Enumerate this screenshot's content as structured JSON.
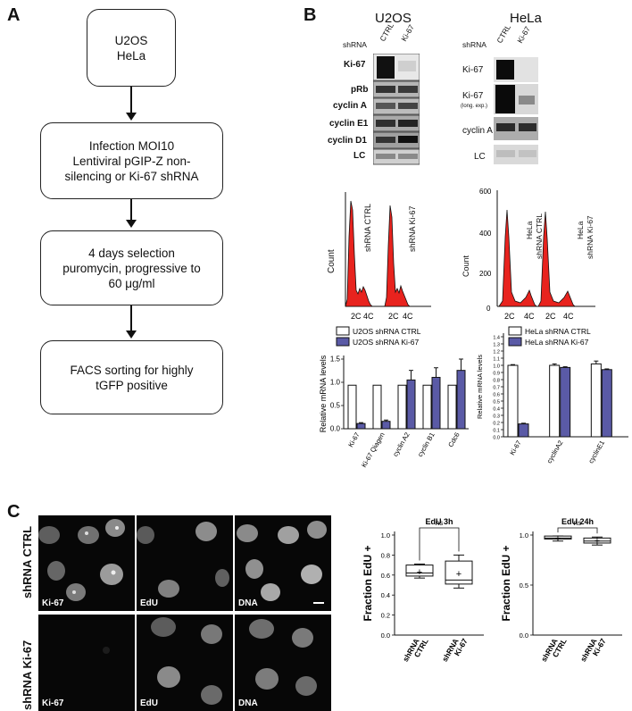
{
  "panel_a": {
    "label": "A",
    "steps": [
      {
        "l1": "U2OS",
        "l2": "HeLa",
        "l3": ""
      },
      {
        "l1": "Infection MOI10",
        "l2": "Lentiviral pGIP-Z non-",
        "l3": "silencing or Ki-67 shRNA"
      },
      {
        "l1": "4 days selection",
        "l2": "puromycin, progressive  to",
        "l3": "60 μg/ml"
      },
      {
        "l1": "FACS sorting for highly",
        "l2": "tGFP positive",
        "l3": ""
      }
    ]
  },
  "panel_b": {
    "label": "B",
    "u2os_title": "U2OS",
    "hela_title": "HeLa",
    "shrna": "shRNA",
    "ctrl": "CTRL",
    "ki67": "Ki-67",
    "u2os_rows": [
      "Ki-67",
      "pRb",
      "cyclin A",
      "cyclin E1",
      "cyclin D1",
      "LC"
    ],
    "hela_rows": [
      "Ki-67",
      "Ki-67",
      "(long. exp.)",
      "cyclin A",
      "LC"
    ],
    "count_label": "Count",
    "hist_u2os": {
      "labels": [
        "shRNA CTRL",
        "shRNA Ki-67"
      ],
      "ticks": [
        "2C",
        "4C",
        "2C",
        "4C"
      ]
    },
    "hist_hela": {
      "labels": [
        "HeLa",
        "shRNA CTRL",
        "HeLa",
        "shRNA Ki-67"
      ],
      "ticks": [
        "2C",
        "4C",
        "2C",
        "4C"
      ],
      "yticks": [
        "600",
        "400",
        "200",
        "0"
      ]
    }
  },
  "panel_c": {
    "label": "C",
    "row_labels": [
      "shRNA CTRL",
      "shRNA Ki-67"
    ],
    "mic_labels": [
      "Ki-67",
      "EdU",
      "DNA",
      "Ki-67",
      "EdU",
      "DNA"
    ],
    "ylabel": "Fraction EdU +",
    "ns": "ns",
    "xticks": [
      [
        "shRNA",
        "CTRL"
      ],
      [
        "shRNA",
        "Ki-67"
      ]
    ]
  },
  "chart_data": [
    {
      "type": "bar",
      "title": "",
      "ylabel": "Relative mRNA levels",
      "ylim": [
        0,
        1.6
      ],
      "yticks": [
        "0.0",
        "0.5",
        "1.0",
        "1.5"
      ],
      "categories": [
        "Ki-67",
        "Ki-67 Qiagen",
        "cyclin A2",
        "cyclin B1",
        "Cdc6"
      ],
      "series": [
        {
          "name": "U2OS shRNA CTRL",
          "values": [
            1.0,
            1.0,
            1.0,
            1.0,
            1.0
          ],
          "color": "#ffffff"
        },
        {
          "name": "U2OS shRNA Ki-67",
          "values": [
            0.12,
            0.17,
            1.12,
            1.18,
            1.34
          ],
          "errors": [
            0.02,
            0.03,
            0.22,
            0.22,
            0.26
          ],
          "color": "#5a5aa6"
        }
      ]
    },
    {
      "type": "bar",
      "title": "",
      "ylabel": "Relative mRNA levels",
      "ylim": [
        0,
        1.4
      ],
      "yticks": [
        "0.0",
        "0.1",
        "0.2",
        "0.3",
        "0.4",
        "0.5",
        "0.6",
        "0.7",
        "0.8",
        "0.9",
        "1.0",
        "1.1",
        "1.2",
        "1.3",
        "1.4"
      ],
      "categories": [
        "Ki-67",
        "cyclinA2",
        "cyclinE1"
      ],
      "series": [
        {
          "name": "HeLa shRNA CTRL",
          "values": [
            1.0,
            1.0,
            1.02
          ],
          "errors": [
            0.01,
            0.02,
            0.04
          ],
          "color": "#ffffff"
        },
        {
          "name": "HeLa shRNA Ki-67",
          "values": [
            0.18,
            0.97,
            0.94
          ],
          "errors": [
            0.01,
            0.01,
            0.01
          ],
          "color": "#5a5aa6"
        }
      ]
    },
    {
      "type": "box",
      "title": "EdU 3h",
      "ylabel": "Fraction EdU +",
      "ylim": [
        0,
        1.0
      ],
      "yticks": [
        "0.0",
        "0.2",
        "0.4",
        "0.6",
        "0.8",
        "1.0"
      ],
      "categories": [
        "shRNA CTRL",
        "shRNA Ki-67"
      ],
      "boxes": [
        {
          "min": 0.57,
          "q1": 0.59,
          "median": 0.62,
          "q3": 0.7,
          "max": 0.71,
          "mean": 0.635
        },
        {
          "min": 0.47,
          "q1": 0.51,
          "median": 0.55,
          "q3": 0.74,
          "max": 0.8,
          "mean": 0.615
        }
      ],
      "annotation": "ns"
    },
    {
      "type": "box",
      "title": "EdU 24h",
      "ylabel": "Fraction EdU +",
      "ylim": [
        0,
        1.0
      ],
      "yticks": [
        "0.0",
        "0.5",
        "1.0"
      ],
      "categories": [
        "shRNA CTRL",
        "shRNA Ki-67"
      ],
      "boxes": [
        {
          "min": 0.94,
          "q1": 0.96,
          "median": 0.97,
          "q3": 0.99,
          "max": 0.99,
          "mean": 0.975
        },
        {
          "min": 0.9,
          "q1": 0.92,
          "median": 0.94,
          "q3": 0.97,
          "max": 0.98,
          "mean": 0.945
        }
      ],
      "annotation": "ns"
    }
  ]
}
